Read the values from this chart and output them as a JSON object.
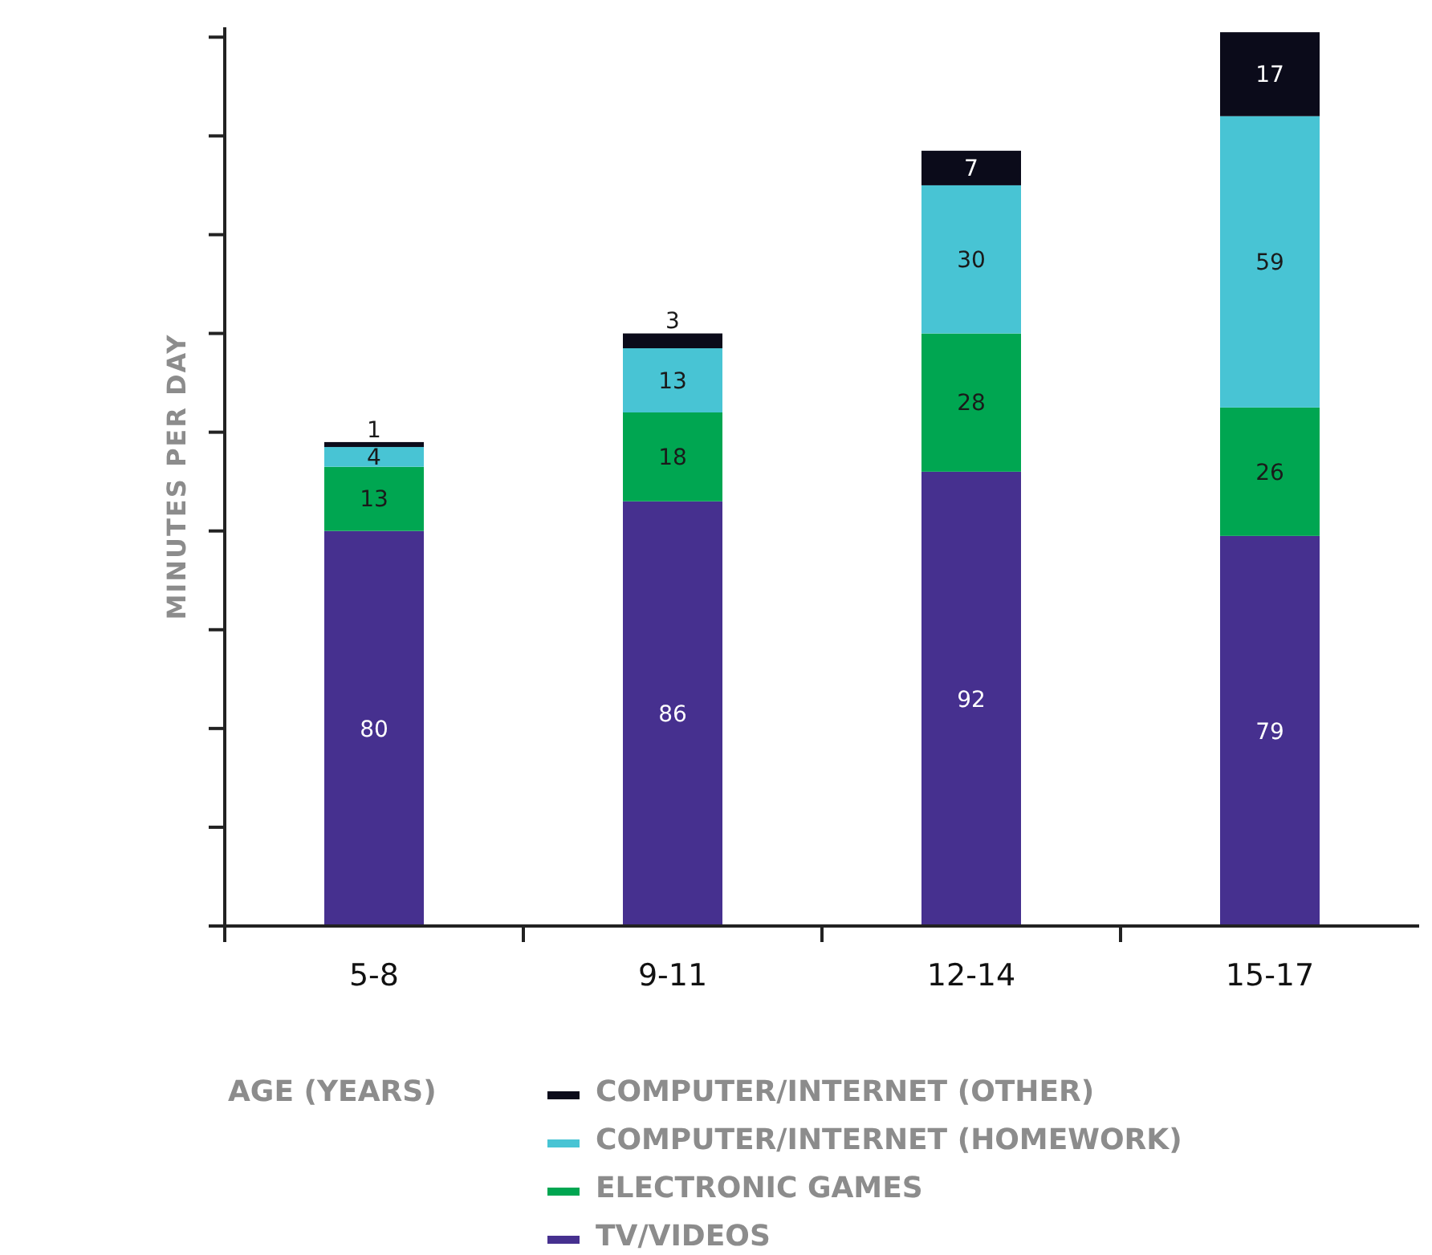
{
  "chart_data": {
    "type": "bar",
    "stacked": true,
    "xlabel": "AGE (YEARS)",
    "ylabel": "MINUTES PER DAY",
    "categories": [
      "5-8",
      "9-11",
      "12-14",
      "15-17"
    ],
    "series": [
      {
        "name": "TV/VIDEOS",
        "color": "#46308f",
        "values": [
          80,
          86,
          92,
          79
        ]
      },
      {
        "name": "ELECTRONIC GAMES",
        "color": "#00a651",
        "values": [
          13,
          18,
          28,
          26
        ]
      },
      {
        "name": "COMPUTER/INTERNET (HOMEWORK)",
        "color": "#48c4d4",
        "values": [
          4,
          13,
          30,
          59
        ]
      },
      {
        "name": "COMPUTER/INTERNET (OTHER)",
        "color": "#0b0b1a",
        "values": [
          1,
          3,
          7,
          17
        ]
      }
    ],
    "ylim": [
      0,
      182
    ],
    "yticks": [
      {
        "value": 0,
        "label": null
      },
      {
        "value": 20,
        "label": null
      },
      {
        "value": 40,
        "label": null
      },
      {
        "value": 60,
        "label": null
      },
      {
        "value": 80,
        "label": null
      },
      {
        "value": 100,
        "label": null
      },
      {
        "value": 120,
        "label": null
      },
      {
        "value": 140,
        "label": null
      },
      {
        "value": 160,
        "label": null
      },
      {
        "value": 180,
        "label": null
      }
    ],
    "data_labels": true,
    "legend": "bottom",
    "grid": false
  }
}
